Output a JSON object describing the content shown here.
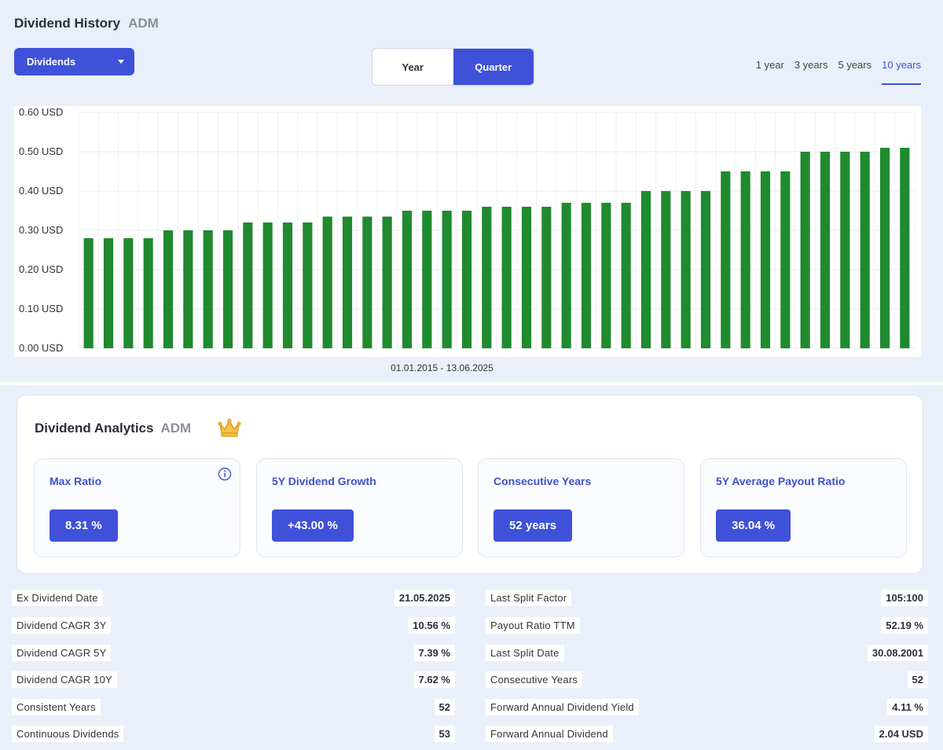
{
  "header": {
    "title": "Dividend History",
    "ticker": "ADM"
  },
  "dropdown": {
    "label": "Dividends"
  },
  "toggle": {
    "options": [
      "Year",
      "Quarter"
    ],
    "active": 1
  },
  "ranges": {
    "options": [
      "1 year",
      "3 years",
      "5 years",
      "10 years"
    ],
    "active": 3
  },
  "chart_data": {
    "type": "bar",
    "title": "",
    "xlabel": "01.01.2015 - 13.06.2025",
    "ylabel": "",
    "ylim": [
      0,
      0.6
    ],
    "yticks": [
      "0.00 USD",
      "0.10 USD",
      "0.20 USD",
      "0.30 USD",
      "0.40 USD",
      "0.50 USD",
      "0.60 USD"
    ],
    "grid": true,
    "color": "#1f8a2e",
    "values": [
      0.28,
      0.28,
      0.28,
      0.28,
      0.3,
      0.3,
      0.3,
      0.3,
      0.32,
      0.32,
      0.32,
      0.32,
      0.335,
      0.335,
      0.335,
      0.335,
      0.35,
      0.35,
      0.35,
      0.35,
      0.36,
      0.36,
      0.36,
      0.36,
      0.37,
      0.37,
      0.37,
      0.37,
      0.4,
      0.4,
      0.4,
      0.4,
      0.45,
      0.45,
      0.45,
      0.45,
      0.5,
      0.5,
      0.5,
      0.5,
      0.51,
      0.51
    ]
  },
  "analytics": {
    "title": "Dividend Analytics",
    "ticker": "ADM",
    "crown_icon": "crown-icon",
    "cards": [
      {
        "label": "Max Ratio",
        "value": "8.31 %",
        "info": true
      },
      {
        "label": "5Y Dividend Growth",
        "value": "+43.00 %"
      },
      {
        "label": "Consecutive Years",
        "value": "52 years"
      },
      {
        "label": "5Y Average Payout Ratio",
        "value": "36.04 %"
      }
    ]
  },
  "stats_left": [
    {
      "key": "Ex Dividend Date",
      "value": "21.05.2025"
    },
    {
      "key": "Dividend CAGR 3Y",
      "value": "10.56 %"
    },
    {
      "key": "Dividend CAGR 5Y",
      "value": "7.39 %"
    },
    {
      "key": "Dividend CAGR 10Y",
      "value": "7.62 %"
    },
    {
      "key": "Consistent Years",
      "value": "52"
    },
    {
      "key": "Continuous Dividends",
      "value": "53"
    }
  ],
  "stats_right": [
    {
      "key": "Last Split Factor",
      "value": "105:100"
    },
    {
      "key": "Payout Ratio TTM",
      "value": "52.19 %"
    },
    {
      "key": "Last Split Date",
      "value": "30.08.2001"
    },
    {
      "key": "Consecutive Years",
      "value": "52"
    },
    {
      "key": "Forward Annual Dividend Yield",
      "value": "4.11 %"
    },
    {
      "key": "Forward Annual Dividend",
      "value": "2.04 USD"
    }
  ]
}
